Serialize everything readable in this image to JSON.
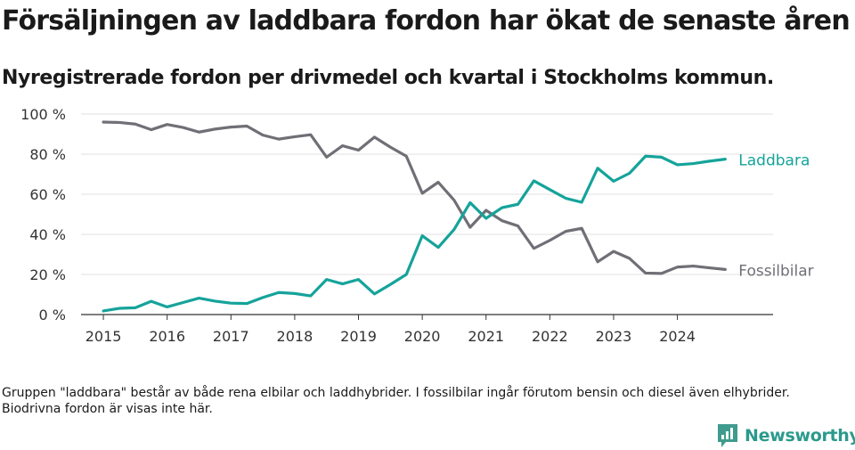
{
  "title": "Försäljningen av laddbara fordon har ökat de senaste åren",
  "subtitle": "Nyregistrerade fordon per drivmedel och kvartal i Stockholms kommun.",
  "footnote": "Gruppen \"laddbara\" består av både rena elbilar och laddhybrider. I fossilbilar ingår förutom bensin och diesel även elhybrider. Biodrivna fordon är visas inte här.",
  "brand": "Newsworthy",
  "colors": {
    "laddbara": "#15a39a",
    "fossilbilar": "#6f6f76",
    "grid": "#e0e0e0",
    "axis": "#333333",
    "brand": "#2a9a8c"
  },
  "chart_data": {
    "type": "line",
    "title": "Försäljningen av laddbara fordon har ökat de senaste åren",
    "xlabel": "",
    "ylabel": "",
    "ylim": [
      0,
      100
    ],
    "y_ticks": [
      0,
      20,
      40,
      60,
      80,
      100
    ],
    "y_tick_labels": [
      "0 %",
      "20 %",
      "40 %",
      "60 %",
      "80 %",
      "100 %"
    ],
    "x_ticks": [
      2015,
      2016,
      2017,
      2018,
      2019,
      2020,
      2021,
      2022,
      2023,
      2024
    ],
    "x_tick_labels": [
      "2015",
      "2016",
      "2017",
      "2018",
      "2019",
      "2020",
      "2021",
      "2022",
      "2023",
      "2024"
    ],
    "xlim": [
      2014.65,
      2025.5
    ],
    "x": [
      2015.0,
      2015.25,
      2015.5,
      2015.75,
      2016.0,
      2016.25,
      2016.5,
      2016.75,
      2017.0,
      2017.25,
      2017.5,
      2017.75,
      2018.0,
      2018.25,
      2018.5,
      2018.75,
      2019.0,
      2019.25,
      2019.5,
      2019.75,
      2020.0,
      2020.25,
      2020.5,
      2020.75,
      2021.0,
      2021.25,
      2021.5,
      2021.75,
      2022.0,
      2022.25,
      2022.5,
      2022.75,
      2023.0,
      2023.25,
      2023.5,
      2023.75,
      2024.0,
      2024.25,
      2024.5,
      2024.75
    ],
    "series": [
      {
        "name": "Laddbara",
        "values": [
          1.8,
          3.1,
          3.4,
          6.6,
          3.8,
          6.0,
          8.2,
          6.7,
          5.7,
          5.5,
          8.5,
          11.0,
          10.5,
          9.3,
          17.5,
          15.3,
          17.5,
          10.3,
          15.0,
          20.0,
          39.3,
          33.5,
          42.5,
          55.8,
          48.0,
          53.3,
          55.0,
          66.7,
          62.3,
          58.0,
          56.0,
          73.0,
          66.5,
          70.5,
          79.0,
          78.5,
          74.7,
          75.3,
          76.5,
          77.5
        ]
      },
      {
        "name": "Fossilbilar",
        "values": [
          96.0,
          95.8,
          95.0,
          92.2,
          94.8,
          93.3,
          91.0,
          92.5,
          93.5,
          94.0,
          89.5,
          87.5,
          88.7,
          89.7,
          78.5,
          84.2,
          82.0,
          88.5,
          83.5,
          79.0,
          60.5,
          66.0,
          57.0,
          43.5,
          52.0,
          46.8,
          44.2,
          33.0,
          37.0,
          41.5,
          43.0,
          26.3,
          31.5,
          28.0,
          20.7,
          20.5,
          23.7,
          24.2,
          23.3,
          22.5
        ]
      }
    ],
    "series_labels": [
      "Laddbara",
      "Fossilbilar"
    ],
    "legend": "inline labels at line ends (right)"
  }
}
